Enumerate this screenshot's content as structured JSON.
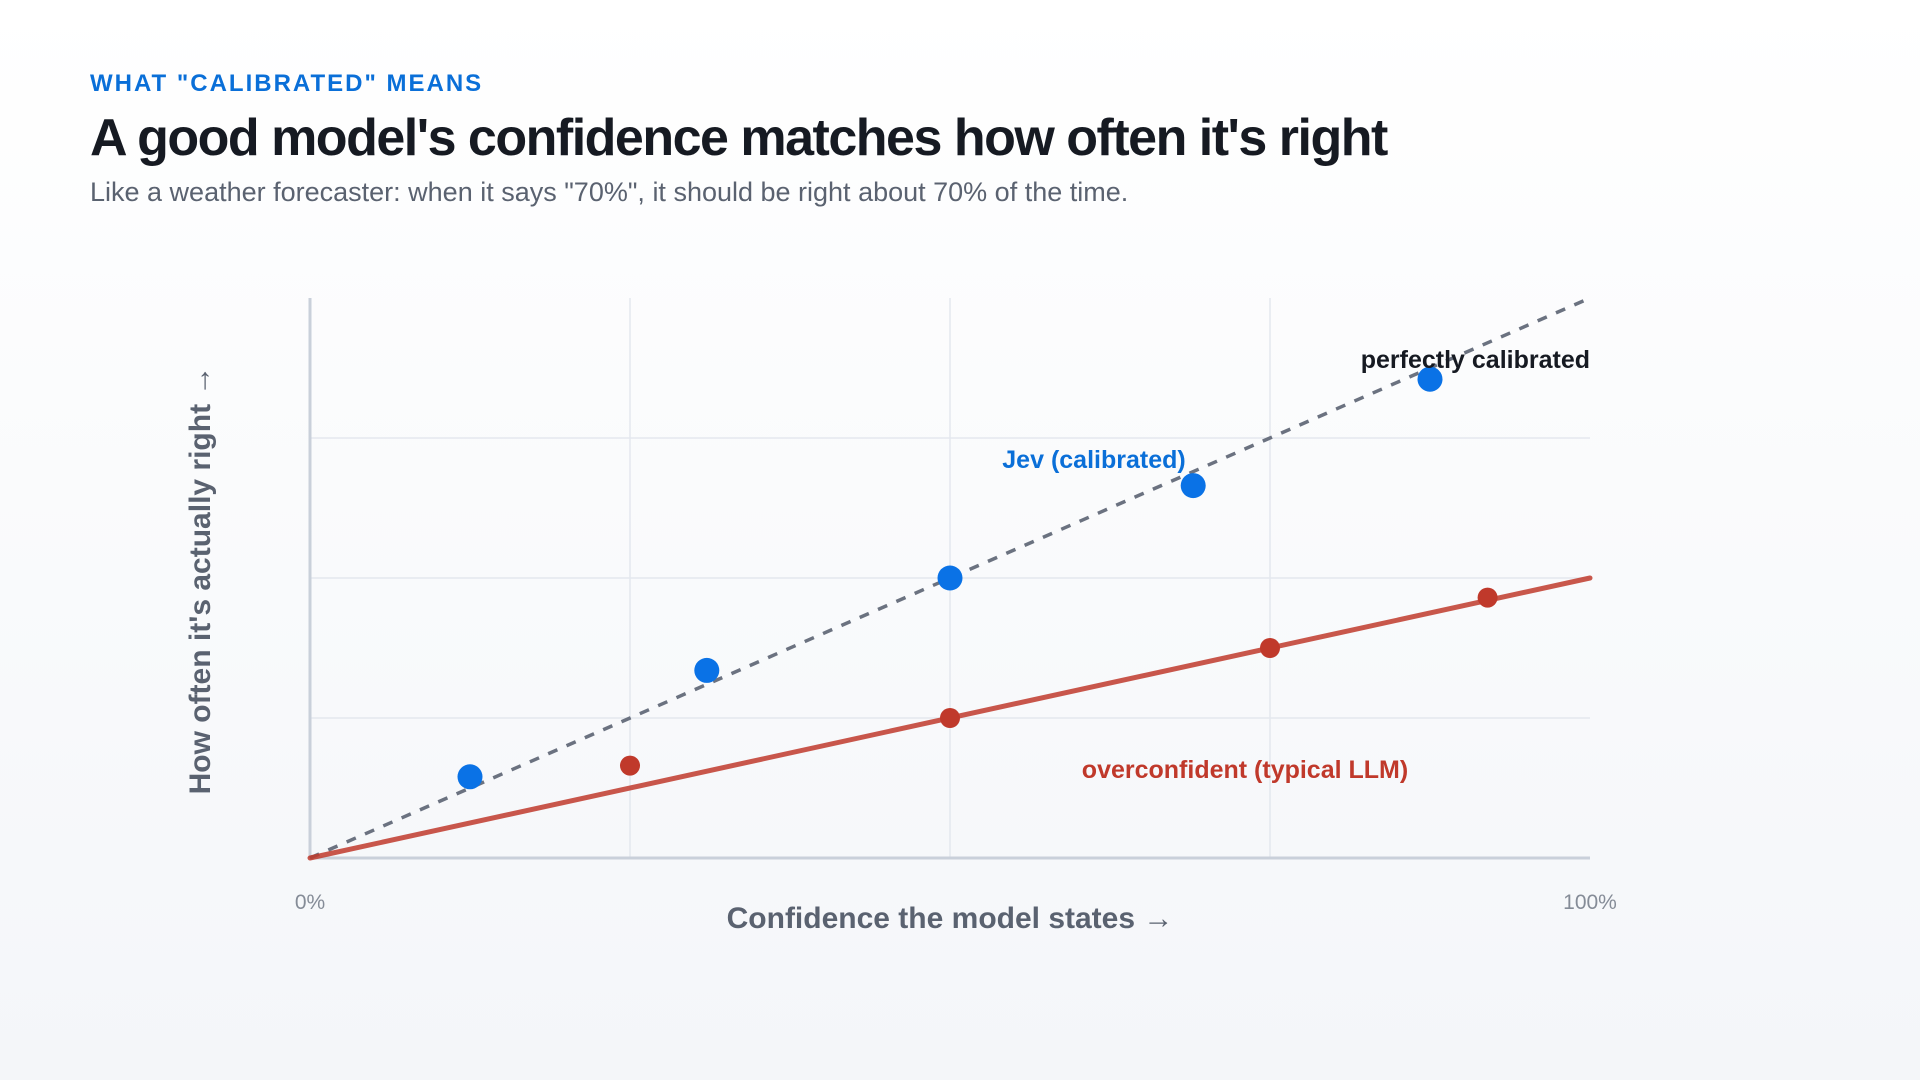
{
  "header": {
    "eyebrow": "WHAT \"CALIBRATED\" MEANS",
    "title": "A good model's confidence matches how often it's right",
    "subtitle": "Like a weather forecaster: when it says \"70%\", it should be right about 70% of the time."
  },
  "chart_data": {
    "type": "scatter",
    "xlabel": "Confidence the model states →",
    "ylabel": "How often it's actually right →",
    "xlim": [
      0,
      100
    ],
    "ylim": [
      0,
      100
    ],
    "x_ticks": [
      "0%",
      "100%"
    ],
    "grid": true,
    "colors": {
      "calibrated": "#0a72e6",
      "overconfident": "#c0392b",
      "reference": "#6b7280"
    },
    "reference_line": {
      "label": "perfectly calibrated",
      "points": [
        [
          0,
          0
        ],
        [
          100,
          100
        ]
      ]
    },
    "series": [
      {
        "name": "Jev (calibrated)",
        "key": "calibrated",
        "points": [
          [
            12.5,
            14.5
          ],
          [
            31,
            33.5
          ],
          [
            50,
            50
          ],
          [
            69,
            66.5
          ],
          [
            87.5,
            85.5
          ]
        ]
      },
      {
        "name": "overconfident (typical LLM)",
        "key": "overconfident",
        "trend": [
          [
            0,
            0
          ],
          [
            100,
            50
          ]
        ],
        "points": [
          [
            25,
            16.5
          ],
          [
            50,
            25
          ],
          [
            75,
            37.5
          ],
          [
            92,
            46.5
          ]
        ]
      }
    ]
  }
}
